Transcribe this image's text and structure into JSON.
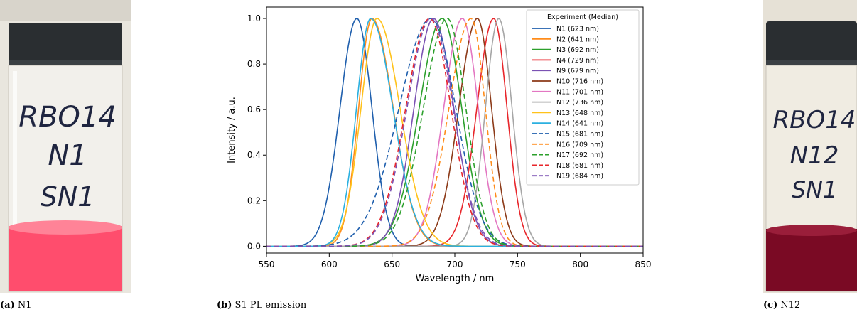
{
  "panels": {
    "a": {
      "tag": "(a)",
      "label": "N1",
      "vial_text": [
        "RBO14",
        "N1",
        "SN1"
      ]
    },
    "b": {
      "tag": "(b)",
      "label": "S1 PL emission"
    },
    "c": {
      "tag": "(c)",
      "label": "N12",
      "vial_text": [
        "RBO14",
        "N12",
        "SN1"
      ]
    }
  },
  "colors": {
    "liquid_a": "#ff4d6d",
    "liquid_c": "#7a0a24",
    "cap": "#2a2e31"
  },
  "chart_data": {
    "type": "line",
    "xlabel": "Wavelength / nm",
    "ylabel": "Intensity / a.u.",
    "xlim": [
      550,
      850
    ],
    "ylim": [
      -0.03,
      1.05
    ],
    "xticks": [
      550,
      600,
      650,
      700,
      750,
      800,
      850
    ],
    "yticks": [
      0.0,
      0.2,
      0.4,
      0.6,
      0.8,
      1.0
    ],
    "ytick_labels": [
      "0.0",
      "0.2",
      "0.4",
      "0.6",
      "0.8",
      "1.0"
    ],
    "legend_title": "Experiment (Median)",
    "legend_position": "top-right",
    "grid": false,
    "series": [
      {
        "name": "N1 (623 nm)",
        "peak": 622,
        "hw_left": 19,
        "hw_right": 17,
        "color": "#1f5fad",
        "dash": false
      },
      {
        "name": "N2 (641 nm)",
        "peak": 634,
        "hw_left": 15,
        "hw_right": 24,
        "color": "#ff8c1a",
        "dash": false
      },
      {
        "name": "N3 (692 nm)",
        "peak": 690,
        "hw_left": 26,
        "hw_right": 22,
        "color": "#2ca02c",
        "dash": false
      },
      {
        "name": "N4 (729 nm)",
        "peak": 731,
        "hw_left": 19,
        "hw_right": 15,
        "color": "#e8262b",
        "dash": false
      },
      {
        "name": "N9 (679 nm)",
        "peak": 683,
        "hw_left": 22,
        "hw_right": 23,
        "color": "#7b52b3",
        "dash": false
      },
      {
        "name": "N10 (716 nm)",
        "peak": 718,
        "hw_left": 21,
        "hw_right": 16,
        "color": "#8c3a18",
        "dash": false
      },
      {
        "name": "N11 (701 nm)",
        "peak": 706,
        "hw_left": 21,
        "hw_right": 18,
        "color": "#e377c2",
        "dash": false
      },
      {
        "name": "N12 (736 nm)",
        "peak": 735,
        "hw_left": 15,
        "hw_right": 15,
        "color": "#a6a6a6",
        "dash": false
      },
      {
        "name": "N13 (648 nm)",
        "peak": 638,
        "hw_left": 18,
        "hw_right": 26,
        "color": "#ffc21a",
        "dash": false
      },
      {
        "name": "N14 (641 nm)",
        "peak": 633,
        "hw_left": 16,
        "hw_right": 25,
        "color": "#2bb0e0",
        "dash": false
      },
      {
        "name": "N15 (681 nm)",
        "peak": 681,
        "hw_left": 36,
        "hw_right": 28,
        "color": "#1f5fad",
        "dash": true
      },
      {
        "name": "N16 (709 nm)",
        "peak": 713,
        "hw_left": 25,
        "hw_right": 16,
        "color": "#ff8c1a",
        "dash": true
      },
      {
        "name": "N17 (692 nm)",
        "peak": 694,
        "hw_left": 27,
        "hw_right": 21,
        "color": "#2ca02c",
        "dash": true
      },
      {
        "name": "N18 (681 nm)",
        "peak": 680,
        "hw_left": 27,
        "hw_right": 24,
        "color": "#e8262b",
        "dash": true
      },
      {
        "name": "N19 (684 nm)",
        "peak": 681,
        "hw_left": 27,
        "hw_right": 25,
        "color": "#7b52b3",
        "dash": true
      }
    ]
  }
}
